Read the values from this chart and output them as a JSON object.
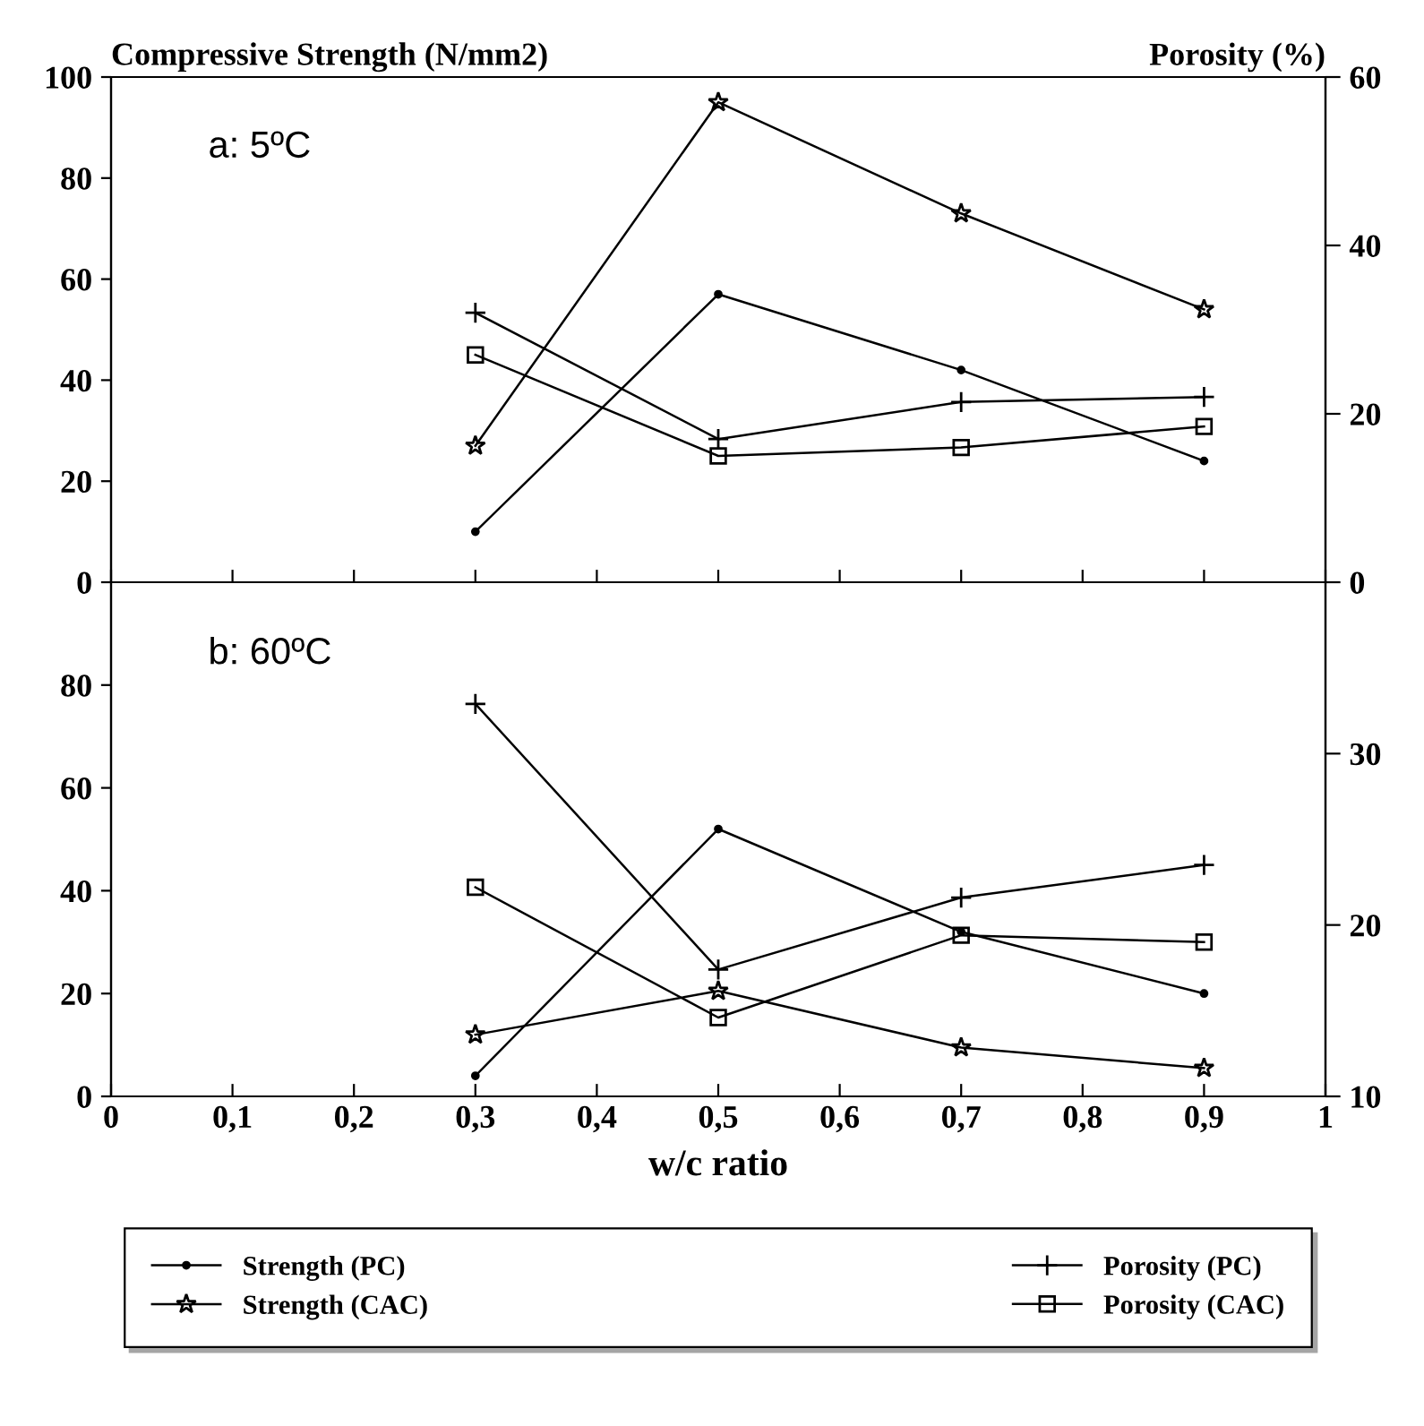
{
  "chart_data": [
    {
      "type": "line",
      "ylabel": "Compressive Strength (N/mm2)",
      "y2label": "Porosity (%)",
      "annotations": [
        "a: 5ºC"
      ],
      "x": [
        0.3,
        0.5,
        0.7,
        0.9
      ],
      "xlim": [
        0,
        1
      ],
      "xticks": [
        0,
        0.1,
        0.2,
        0.3,
        0.4,
        0.5,
        0.6,
        0.7,
        0.8,
        0.9,
        1
      ],
      "ylim": [
        0,
        100
      ],
      "yticks": [
        0,
        20,
        40,
        60,
        80,
        100
      ],
      "y2lim": [
        0,
        60
      ],
      "y2ticks": [
        0,
        20,
        40,
        60
      ],
      "tick_labels": "y",
      "grid": false,
      "legend": false,
      "line_style": "solid",
      "series": [
        {
          "color": "#000000",
          "marker": "circle",
          "values": [
            10,
            57,
            42,
            24
          ]
        },
        {
          "color": "#000000",
          "marker": "star",
          "values": [
            27,
            95,
            73,
            54
          ]
        },
        {
          "color": "#000000",
          "marker": "cross",
          "axis": "y2",
          "values": [
            32,
            17,
            21.4,
            22
          ]
        },
        {
          "color": "#000000",
          "marker": "square",
          "axis": "y2",
          "values": [
            27,
            15,
            16,
            18.5
          ]
        }
      ]
    },
    {
      "type": "line",
      "xlabel": "w/c ratio",
      "annotations": [
        "b: 60ºC"
      ],
      "x": [
        0.3,
        0.5,
        0.7,
        0.9
      ],
      "xlim": [
        0,
        1
      ],
      "xticks": [
        0,
        {
          "value": 0.1,
          "label": "0,1"
        },
        {
          "value": 0.2,
          "label": "0,2"
        },
        {
          "value": 0.3,
          "label": "0,3"
        },
        {
          "value": 0.4,
          "label": "0,4"
        },
        {
          "value": 0.5,
          "label": "0,5"
        },
        {
          "value": 0.6,
          "label": "0,6"
        },
        {
          "value": 0.7,
          "label": "0,7"
        },
        {
          "value": 0.8,
          "label": "0,8"
        },
        {
          "value": 0.9,
          "label": "0,9"
        },
        1
      ],
      "ylim": [
        0,
        100
      ],
      "yticks": [
        0,
        20,
        40,
        60,
        80
      ],
      "y2lim": [
        10,
        40
      ],
      "y2ticks": [
        10,
        20,
        30
      ],
      "grid": false,
      "legend": "bottom",
      "line_style": "solid",
      "series": [
        {
          "name": "Strength (PC)",
          "color": "#000000",
          "marker": "circle",
          "values": [
            4,
            52,
            32,
            20
          ]
        },
        {
          "name": "Strength (CAC)",
          "color": "#000000",
          "marker": "star",
          "values": [
            12,
            20.5,
            9.5,
            5.5
          ]
        },
        {
          "name": "Porosity (PC)",
          "color": "#000000",
          "marker": "cross",
          "axis": "y2",
          "values": [
            32.9,
            17.4,
            21.6,
            23.5
          ]
        },
        {
          "name": "Porosity (CAC)",
          "color": "#000000",
          "marker": "square",
          "axis": "y2",
          "values": [
            22.2,
            14.6,
            19.4,
            19
          ]
        }
      ]
    }
  ]
}
